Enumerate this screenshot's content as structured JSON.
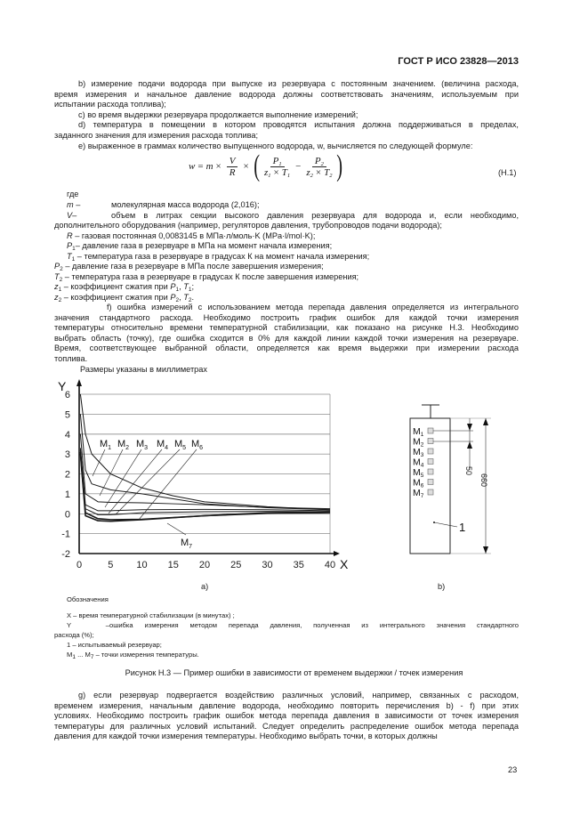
{
  "header": {
    "standard": "ГОСТ Р ИСО 23828—2013"
  },
  "items_top": [
    {
      "text": "b) измерение подачи  водорода при выпуске из резервуара с постоянным значением. (величина расхода,",
      "justify": true,
      "indent": true
    },
    {
      "text": "время измерения и начальное давление водорода должны соответствовать значениям, используемым при",
      "justify": true
    },
    {
      "text": "испытании расхода топлива);"
    },
    {
      "text": "c) во время выдержки резервуара продолжается выполнение измерений;",
      "indent": true
    },
    {
      "text": "d) температура в помещении в котором проводятся испытания должна поддерживаться в пределах,",
      "justify": true,
      "indent": true
    },
    {
      "text": "заданного значения для измерения расхода топлива;"
    },
    {
      "text": "e) выраженное в граммах количество выпущенного водорода, w, вычисляется по следующей формуле:",
      "indent": true
    }
  ],
  "formula": {
    "lhs": "w",
    "eq": "=",
    "m": "m",
    "times": "×",
    "V": "V",
    "R": "R",
    "P1": "P",
    "P1sub": "1",
    "z1": "z",
    "z1sub": "1",
    "T1": "T",
    "T1sub": "1",
    "minus": "−",
    "P2": "P",
    "P2sub": "2",
    "z2": "z",
    "z2sub": "2",
    "T2": "T",
    "T2sub": "2",
    "number": "(Н.1)"
  },
  "where": {
    "label": "где",
    "m": {
      "sym": "m –",
      "text": "молекулярная масса водорода (2,016);"
    },
    "V": {
      "sym": "V–",
      "text": "объем в литрах секции высокого давления резервуара для водорода и, если необходимо,",
      "cont": "дополнительного оборудования (например, регуляторов давления, трубопроводов подачи водорода);"
    },
    "R": {
      "sym": "R",
      "text": " – газовая постоянная 0,0083145 в МПа·л/моль·K (MPa·l/mol·K);"
    },
    "P1": {
      "sym": "P",
      "sub": "1",
      "text": "– давление газа в резервуаре в МПа на момент начала измерения;"
    },
    "T1": {
      "sym": "T",
      "sub": "1",
      "text": " – температура газа в резервуаре в градусах К на момент начала измерения;"
    },
    "P2": {
      "sym": "P",
      "sub": "2",
      "text": " – давление газа в резервуаре в МПа после завершения измерения;"
    },
    "T2": {
      "sym": "T",
      "sub": "2",
      "text": " – температура газа в резервуаре в градусах К после завершения измерения;"
    },
    "z1": {
      "sym": "z",
      "sub": "1",
      "text": " – коэффициент сжатия при ",
      "a": "P",
      "asub": "1",
      "b": "T",
      "bsub": "1",
      "end": ";"
    },
    "z2": {
      "sym": "z",
      "sub": "2",
      "text": " – коэффициент сжатия при ",
      "a": "P",
      "asub": "2",
      "b": "T",
      "bsub": "2",
      "end": "."
    }
  },
  "item_f": [
    "f) ошибка измерений с использованием метода перепада давления определяется из интегрального",
    "значения стандартного расхода. Необходимо построить график ошибок для каждой точки измерения",
    "температуры относительно времени температурной стабилизации, как показано на рисунке Н.3. Необходимо",
    "выбрать область (точку), где ошибка сходится в 0% для каждой линии каждой точки измерения на резервуаре.",
    "Время, соответствующее выбранной области, определяется как время выдержки при измерении расхода",
    "топлива."
  ],
  "figure": {
    "dimensions_note": "Размеры указаны в миллиметрах",
    "label_a": "а)",
    "label_b": "b)",
    "tank": {
      "points": [
        "M",
        "M",
        "M",
        "M",
        "M",
        "M",
        "M"
      ],
      "point_subs": [
        "1",
        "2",
        "3",
        "4",
        "5",
        "6",
        "7"
      ],
      "dim_small": "50",
      "dim_large": "660",
      "callout": "1"
    },
    "legend_title": "Обозначения",
    "legend": {
      "x": "X – время температурной стабилизации (в минутах) ;",
      "y_sym": "Y –",
      "y": "ошибка измерения методом перепада давления, полученная из интегрального значения стандартного",
      "y_cont": "расхода (%);",
      "one": "1 – испытываемый резервуар;",
      "m_a": "M",
      "m_asub": "1",
      "m_mid": " ... M",
      "m_bsub": "7",
      "m_text": " – точки измерения температуры."
    },
    "caption": "Рисунок Н.3 — Пример ошибки в зависимости от временем выдержки / точек измерения"
  },
  "chart_data": {
    "type": "line",
    "xlabel": "X",
    "ylabel": "Y",
    "xlim": [
      0,
      40
    ],
    "ylim": [
      -2,
      6
    ],
    "xticks": [
      "0",
      "5",
      "10",
      "15",
      "20",
      "25",
      "30",
      "35",
      "40"
    ],
    "yticks": [
      "-2",
      "-1",
      "0",
      "1",
      "2",
      "3",
      "4",
      "5",
      "6"
    ],
    "grid": "horizontal",
    "series": [
      {
        "name": "M1",
        "label": "M",
        "sub": "1",
        "x": [
          0.2,
          1,
          2,
          5,
          10,
          15,
          20,
          30,
          40
        ],
        "y": [
          6,
          4,
          3,
          2,
          1.3,
          0.9,
          0.6,
          0.35,
          0.2
        ]
      },
      {
        "name": "M2",
        "label": "M",
        "sub": "2",
        "x": [
          0.2,
          1,
          2,
          5,
          10,
          15,
          20,
          30,
          40
        ],
        "y": [
          5,
          2.2,
          1.5,
          1.2,
          1,
          0.75,
          0.5,
          0.3,
          0.2
        ]
      },
      {
        "name": "M3",
        "label": "M",
        "sub": "3",
        "x": [
          0.2,
          1,
          3,
          5,
          10,
          15,
          20,
          30,
          40
        ],
        "y": [
          4,
          1,
          0.6,
          0.57,
          0.55,
          0.5,
          0.45,
          0.32,
          0.25
        ]
      },
      {
        "name": "M4",
        "label": "M",
        "sub": "4",
        "x": [
          0.2,
          1,
          3,
          5,
          10,
          20,
          30,
          40
        ],
        "y": [
          3.3,
          0.45,
          0.15,
          0.15,
          0.2,
          0.22,
          0.2,
          0.15
        ]
      },
      {
        "name": "M5",
        "label": "M",
        "sub": "5",
        "x": [
          0.2,
          1,
          3,
          5,
          10,
          20,
          30,
          40
        ],
        "y": [
          3.2,
          0.25,
          -0.05,
          -0.05,
          0.05,
          0.1,
          0.12,
          0.1
        ]
      },
      {
        "name": "M6",
        "label": "M",
        "sub": "6",
        "x": [
          0.2,
          1,
          3,
          5,
          10,
          20,
          30,
          40
        ],
        "y": [
          3.1,
          0.05,
          -0.25,
          -0.3,
          -0.28,
          -0.1,
          0.05,
          0.1
        ]
      },
      {
        "name": "M7",
        "label": "M",
        "sub": "7",
        "x": [
          0.2,
          1,
          3,
          5,
          10,
          20,
          30,
          40
        ],
        "y": [
          3,
          -0.1,
          -0.35,
          -0.38,
          -0.3,
          -0.1,
          0.02,
          0.05
        ]
      }
    ]
  },
  "item_g": [
    "g) если резервуар подвергается воздействию различных условий, например, связанных с расходом,",
    "временем измерения, начальным давление водорода, необходимо повторить перечисления b) - f) при этих",
    "условиях. Необходимо построить график ошибок метода перепада давления в зависимости от точек измерения",
    "температуры для различных условий испытаний. Следует определить распределение ошибок метода перепада",
    "давления для каждой точки измерения температуры. Необходимо выбрать точки, в которых должны"
  ],
  "page_number": "23"
}
